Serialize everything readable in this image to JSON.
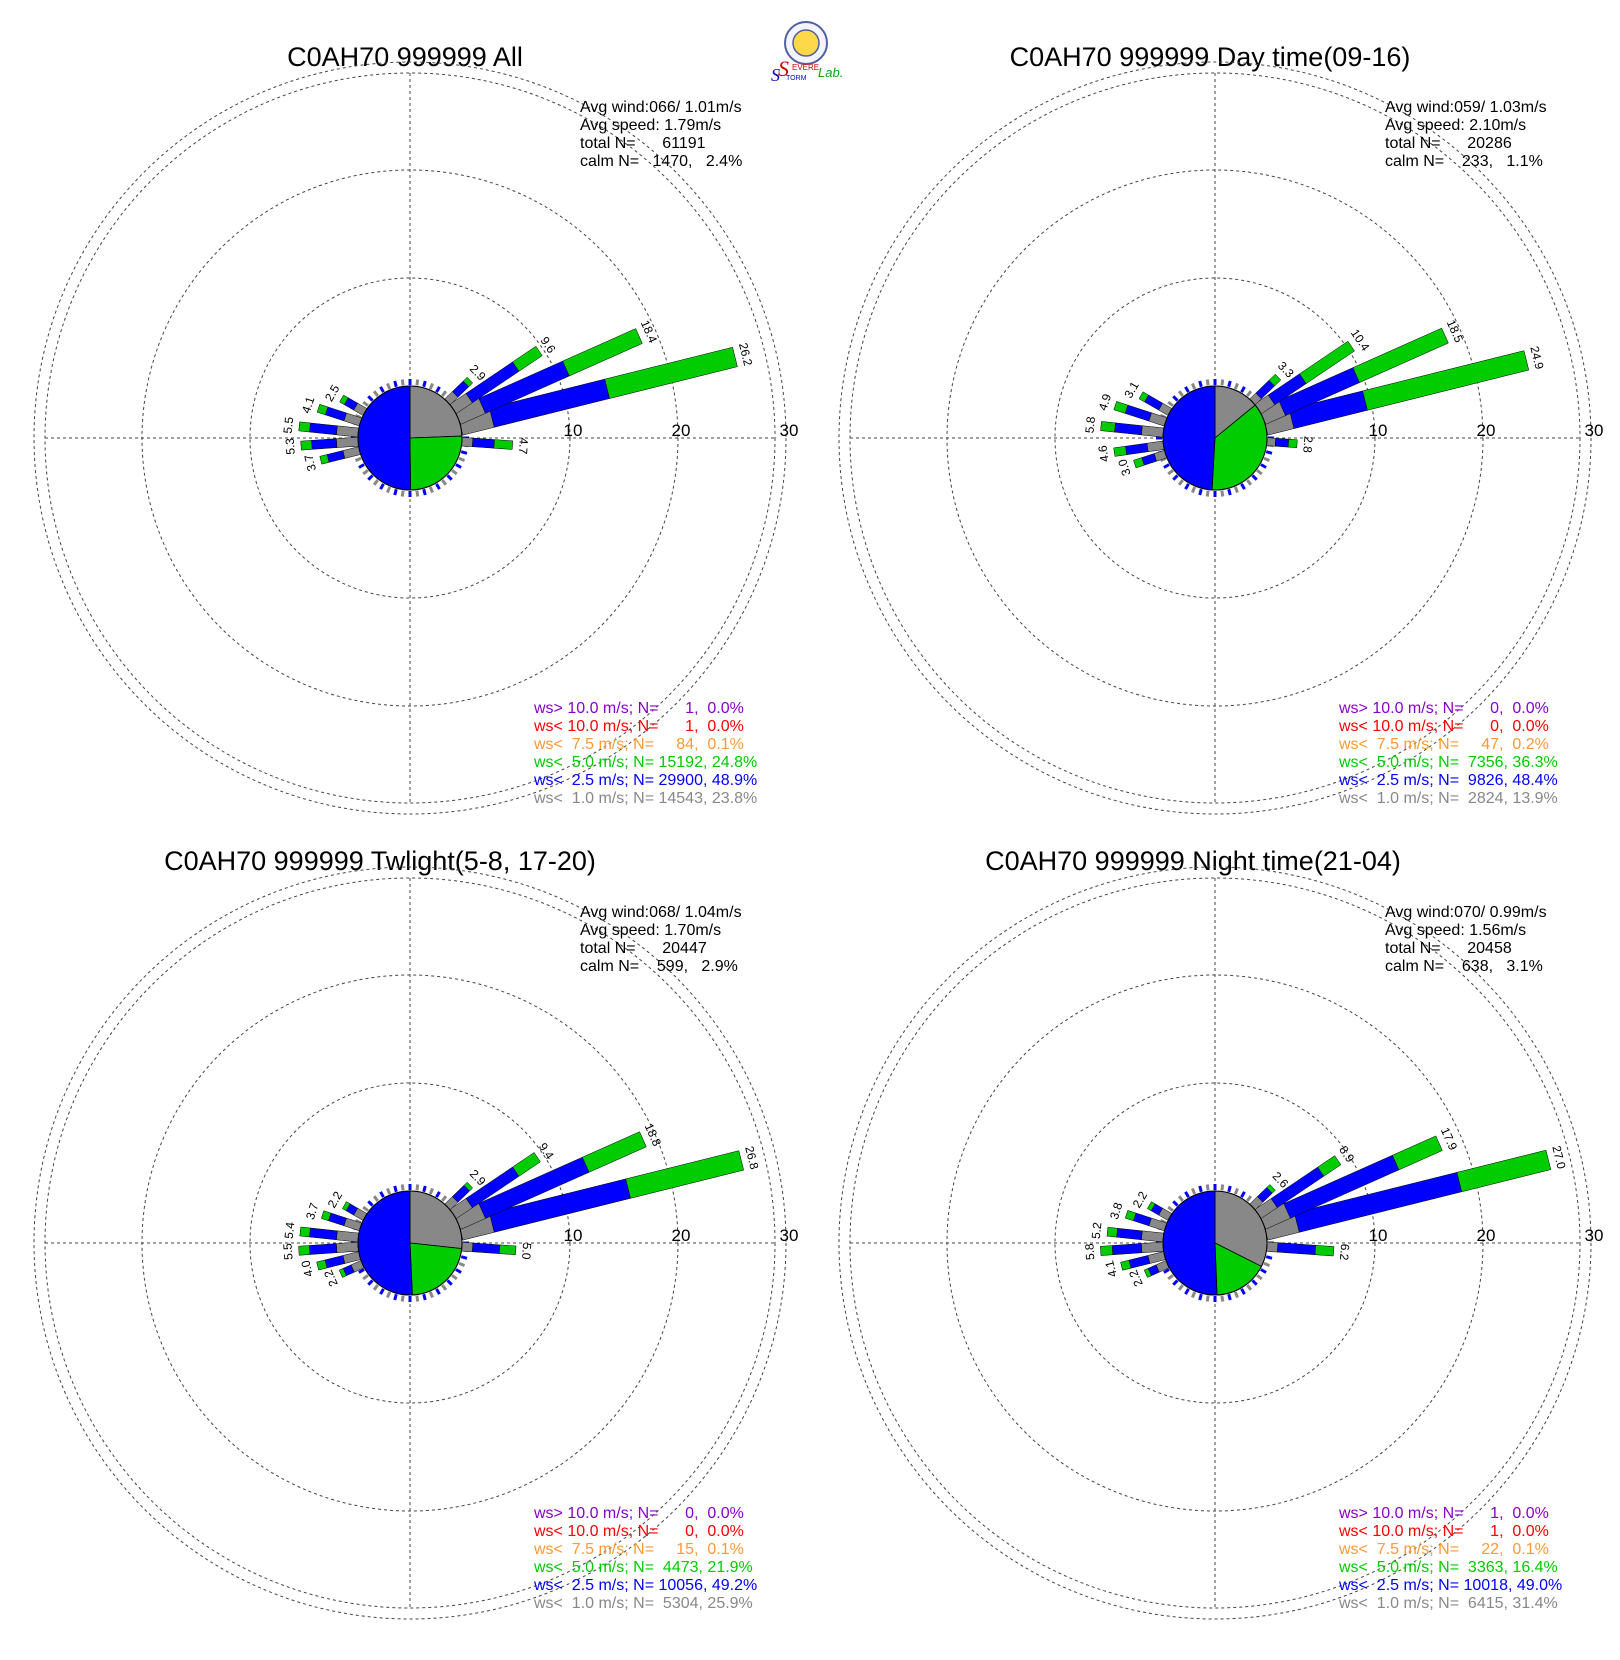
{
  "logo": {
    "main_letters": [
      "S",
      "S"
    ],
    "small_text_1": "EVERE",
    "small_text_2": "TORM",
    "lab_text": "Lab.",
    "colors": {
      "s1": "#cc0000",
      "s2": "#0000cc",
      "lab": "#00aa00",
      "seal_ring": "#5060a0"
    }
  },
  "colors": {
    "gt10": "#8a00cc",
    "lt10": "#ff0000",
    "lt7_5": "#ff9933",
    "lt5": "#00cc00",
    "lt2_5": "#0000ff",
    "lt1": "#888888",
    "grid": "#444444",
    "text": "#000000"
  },
  "chart_data": [
    {
      "type": "wind-rose",
      "title": "C0AH70 999999 All",
      "radial_ticks": [
        "10",
        "20",
        "30"
      ],
      "radial_max": 30,
      "stats": {
        "line1": "Avg wind:066/ 1.01m/s",
        "line2": "Avg speed: 1.79m/s",
        "line3": "total N=      61191",
        "line4": "calm N=   1470,   2.4%"
      },
      "legend": [
        {
          "text": "ws> 10.0 m/s; N=      1,  0.0%",
          "color_key": "gt10"
        },
        {
          "text": "ws< 10.0 m/s; N=      1,  0.0%",
          "color_key": "lt10"
        },
        {
          "text": "ws<  7.5 m/s; N=     84,  0.1%",
          "color_key": "lt7_5"
        },
        {
          "text": "ws<  5.0 m/s; N= 15192, 24.8%",
          "color_key": "lt5"
        },
        {
          "text": "ws<  2.5 m/s; N= 29900, 48.9%",
          "color_key": "lt2_5"
        },
        {
          "text": "ws<  1.0 m/s; N= 14543, 23.8%",
          "color_key": "lt1"
        }
      ],
      "pie": [
        {
          "key": "lt1",
          "percent": 23.8
        },
        {
          "key": "lt2_5",
          "percent": 48.9
        },
        {
          "key": "lt5",
          "percent": 24.8
        }
      ],
      "petals": [
        {
          "dir": 76,
          "total": 26.2,
          "lt1": 3.0,
          "lt2_5": 14.0,
          "lt5": 26.2,
          "label": "26.2"
        },
        {
          "dir": 66,
          "total": 18.4,
          "lt1": 2.5,
          "lt2_5": 11.0,
          "lt5": 18.4,
          "label": "18.4"
        },
        {
          "dir": 56,
          "total": 9.6,
          "lt1": 1.8,
          "lt2_5": 7.0,
          "lt5": 9.6,
          "label": "9.6"
        },
        {
          "dir": 46,
          "total": 2.9,
          "lt1": 1.0,
          "lt2_5": 2.4,
          "lt5": 2.9,
          "label": "2.9"
        },
        {
          "dir": 94,
          "total": 4.7,
          "lt1": 1.0,
          "lt2_5": 3.0,
          "lt5": 4.7,
          "label": "4.7"
        },
        {
          "dir": 300,
          "total": 2.5,
          "lt1": 1.0,
          "lt2_5": 2.0,
          "lt5": 2.5,
          "label": "2.5"
        },
        {
          "dir": 288,
          "total": 4.1,
          "lt1": 1.5,
          "lt2_5": 3.3,
          "lt5": 4.1,
          "label": "4.1"
        },
        {
          "dir": 276,
          "total": 5.5,
          "lt1": 2.0,
          "lt2_5": 4.5,
          "lt5": 5.5,
          "label": "5.5"
        },
        {
          "dir": 266,
          "total": 5.3,
          "lt1": 2.0,
          "lt2_5": 4.3,
          "lt5": 5.3,
          "label": "5.3"
        },
        {
          "dir": 256,
          "total": 3.7,
          "lt1": 1.5,
          "lt2_5": 3.0,
          "lt5": 3.7,
          "label": "3.7"
        }
      ]
    },
    {
      "type": "wind-rose",
      "title": "C0AH70 999999 Day time(09-16)",
      "radial_ticks": [
        "10",
        "20",
        "30"
      ],
      "radial_max": 30,
      "stats": {
        "line1": "Avg wind:059/ 1.03m/s",
        "line2": "Avg speed: 2.10m/s",
        "line3": "total N=      20286",
        "line4": "calm N=    233,   1.1%"
      },
      "legend": [
        {
          "text": "ws> 10.0 m/s; N=      0,  0.0%",
          "color_key": "gt10"
        },
        {
          "text": "ws< 10.0 m/s; N=      0,  0.0%",
          "color_key": "lt10"
        },
        {
          "text": "ws<  7.5 m/s; N=     47,  0.2%",
          "color_key": "lt7_5"
        },
        {
          "text": "ws<  5.0 m/s; N=  7356, 36.3%",
          "color_key": "lt5"
        },
        {
          "text": "ws<  2.5 m/s; N=  9826, 48.4%",
          "color_key": "lt2_5"
        },
        {
          "text": "ws<  1.0 m/s; N=  2824, 13.9%",
          "color_key": "lt1"
        }
      ],
      "pie": [
        {
          "key": "lt1",
          "percent": 13.9
        },
        {
          "key": "lt2_5",
          "percent": 48.4
        },
        {
          "key": "lt5",
          "percent": 36.3
        }
      ],
      "petals": [
        {
          "dir": 76,
          "total": 24.9,
          "lt1": 2.5,
          "lt2_5": 9.5,
          "lt5": 24.9,
          "label": "24.9"
        },
        {
          "dir": 66,
          "total": 18.5,
          "lt1": 2.0,
          "lt2_5": 9.5,
          "lt5": 18.5,
          "label": "18.5"
        },
        {
          "dir": 56,
          "total": 10.4,
          "lt1": 1.5,
          "lt2_5": 5.0,
          "lt5": 10.4,
          "label": "10.4"
        },
        {
          "dir": 46,
          "total": 3.3,
          "lt1": 0.8,
          "lt2_5": 2.5,
          "lt5": 3.3,
          "label": "3.3"
        },
        {
          "dir": 94,
          "total": 2.8,
          "lt1": 0.8,
          "lt2_5": 2.0,
          "lt5": 2.8,
          "label": "2.8"
        },
        {
          "dir": 300,
          "total": 3.1,
          "lt1": 1.0,
          "lt2_5": 2.5,
          "lt5": 3.1,
          "label": "3.1"
        },
        {
          "dir": 288,
          "total": 4.9,
          "lt1": 1.5,
          "lt2_5": 3.8,
          "lt5": 4.9,
          "label": "4.9"
        },
        {
          "dir": 276,
          "total": 5.8,
          "lt1": 2.0,
          "lt2_5": 4.5,
          "lt5": 5.8,
          "label": "5.8"
        },
        {
          "dir": 262,
          "total": 4.6,
          "lt1": 1.5,
          "lt2_5": 3.5,
          "lt5": 4.6,
          "label": "4.6"
        },
        {
          "dir": 252,
          "total": 3.0,
          "lt1": 1.0,
          "lt2_5": 2.2,
          "lt5": 3.0,
          "label": "3.0"
        }
      ]
    },
    {
      "type": "wind-rose",
      "title": "C0AH70 999999 Twlight(5-8, 17-20)",
      "radial_ticks": [
        "10",
        "20",
        "30"
      ],
      "radial_max": 30,
      "stats": {
        "line1": "Avg wind:068/ 1.04m/s",
        "line2": "Avg speed: 1.70m/s",
        "line3": "total N=      20447",
        "line4": "calm N=    599,   2.9%"
      },
      "legend": [
        {
          "text": "ws> 10.0 m/s; N=      0,  0.0%",
          "color_key": "gt10"
        },
        {
          "text": "ws< 10.0 m/s; N=      0,  0.0%",
          "color_key": "lt10"
        },
        {
          "text": "ws<  7.5 m/s; N=     15,  0.1%",
          "color_key": "lt7_5"
        },
        {
          "text": "ws<  5.0 m/s; N=  4473, 21.9%",
          "color_key": "lt5"
        },
        {
          "text": "ws<  2.5 m/s; N= 10056, 49.2%",
          "color_key": "lt2_5"
        },
        {
          "text": "ws<  1.0 m/s; N=  5304, 25.9%",
          "color_key": "lt1"
        }
      ],
      "pie": [
        {
          "key": "lt1",
          "percent": 25.9
        },
        {
          "key": "lt2_5",
          "percent": 49.2
        },
        {
          "key": "lt5",
          "percent": 21.9
        }
      ],
      "petals": [
        {
          "dir": 76,
          "total": 26.8,
          "lt1": 3.0,
          "lt2_5": 16.0,
          "lt5": 26.8,
          "label": "26.8"
        },
        {
          "dir": 66,
          "total": 18.8,
          "lt1": 2.5,
          "lt2_5": 13.0,
          "lt5": 18.8,
          "label": "18.8"
        },
        {
          "dir": 56,
          "total": 9.4,
          "lt1": 1.8,
          "lt2_5": 7.0,
          "lt5": 9.4,
          "label": "9.4"
        },
        {
          "dir": 46,
          "total": 2.9,
          "lt1": 1.0,
          "lt2_5": 2.5,
          "lt5": 2.9,
          "label": "2.9"
        },
        {
          "dir": 94,
          "total": 5.0,
          "lt1": 1.0,
          "lt2_5": 3.5,
          "lt5": 5.0,
          "label": "5.0"
        },
        {
          "dir": 300,
          "total": 2.2,
          "lt1": 1.0,
          "lt2_5": 1.8,
          "lt5": 2.2,
          "label": "2.2"
        },
        {
          "dir": 288,
          "total": 3.7,
          "lt1": 1.5,
          "lt2_5": 3.0,
          "lt5": 3.7,
          "label": "3.7"
        },
        {
          "dir": 276,
          "total": 5.4,
          "lt1": 2.0,
          "lt2_5": 4.5,
          "lt5": 5.4,
          "label": "5.4"
        },
        {
          "dir": 266,
          "total": 5.5,
          "lt1": 2.0,
          "lt2_5": 4.5,
          "lt5": 5.5,
          "label": "5.5"
        },
        {
          "dir": 256,
          "total": 4.0,
          "lt1": 1.5,
          "lt2_5": 3.2,
          "lt5": 4.0,
          "label": "4.0"
        },
        {
          "dir": 246,
          "total": 2.2,
          "lt1": 1.0,
          "lt2_5": 1.8,
          "lt5": 2.2,
          "label": "2.2"
        }
      ]
    },
    {
      "type": "wind-rose",
      "title": "C0AH70 999999 Night time(21-04)",
      "radial_ticks": [
        "10",
        "20",
        "30"
      ],
      "radial_max": 30,
      "stats": {
        "line1": "Avg wind:070/ 0.99m/s",
        "line2": "Avg speed: 1.56m/s",
        "line3": "total N=      20458",
        "line4": "calm N=    638,   3.1%"
      },
      "legend": [
        {
          "text": "ws> 10.0 m/s; N=      1,  0.0%",
          "color_key": "gt10"
        },
        {
          "text": "ws< 10.0 m/s; N=      1,  0.0%",
          "color_key": "lt10"
        },
        {
          "text": "ws<  7.5 m/s; N=     22,  0.1%",
          "color_key": "lt7_5"
        },
        {
          "text": "ws<  5.0 m/s; N=  3363, 16.4%",
          "color_key": "lt5"
        },
        {
          "text": "ws<  2.5 m/s; N= 10018, 49.0%",
          "color_key": "lt2_5"
        },
        {
          "text": "ws<  1.0 m/s; N=  6415, 31.4%",
          "color_key": "lt1"
        }
      ],
      "pie": [
        {
          "key": "lt1",
          "percent": 31.4
        },
        {
          "key": "lt2_5",
          "percent": 49.0
        },
        {
          "key": "lt5",
          "percent": 16.4
        }
      ],
      "petals": [
        {
          "dir": 76,
          "total": 27.0,
          "lt1": 3.0,
          "lt2_5": 18.5,
          "lt5": 27.0,
          "label": "27.0"
        },
        {
          "dir": 66,
          "total": 17.9,
          "lt1": 2.5,
          "lt2_5": 13.5,
          "lt5": 17.9,
          "label": "17.9"
        },
        {
          "dir": 56,
          "total": 8.9,
          "lt1": 1.8,
          "lt2_5": 7.0,
          "lt5": 8.9,
          "label": "8.9"
        },
        {
          "dir": 46,
          "total": 2.6,
          "lt1": 1.0,
          "lt2_5": 2.2,
          "lt5": 2.6,
          "label": "2.6"
        },
        {
          "dir": 94,
          "total": 6.2,
          "lt1": 1.0,
          "lt2_5": 4.5,
          "lt5": 6.2,
          "label": "6.2"
        },
        {
          "dir": 300,
          "total": 2.2,
          "lt1": 1.0,
          "lt2_5": 1.8,
          "lt5": 2.2,
          "label": "2.2"
        },
        {
          "dir": 288,
          "total": 3.8,
          "lt1": 1.5,
          "lt2_5": 3.0,
          "lt5": 3.8,
          "label": "3.8"
        },
        {
          "dir": 276,
          "total": 5.2,
          "lt1": 2.0,
          "lt2_5": 4.3,
          "lt5": 5.2,
          "label": "5.2"
        },
        {
          "dir": 266,
          "total": 5.8,
          "lt1": 2.0,
          "lt2_5": 4.7,
          "lt5": 5.8,
          "label": "5.8"
        },
        {
          "dir": 256,
          "total": 4.1,
          "lt1": 1.5,
          "lt2_5": 3.3,
          "lt5": 4.1,
          "label": "4.1"
        },
        {
          "dir": 246,
          "total": 2.2,
          "lt1": 1.0,
          "lt2_5": 1.8,
          "lt5": 2.2,
          "label": "2.2"
        }
      ]
    }
  ]
}
